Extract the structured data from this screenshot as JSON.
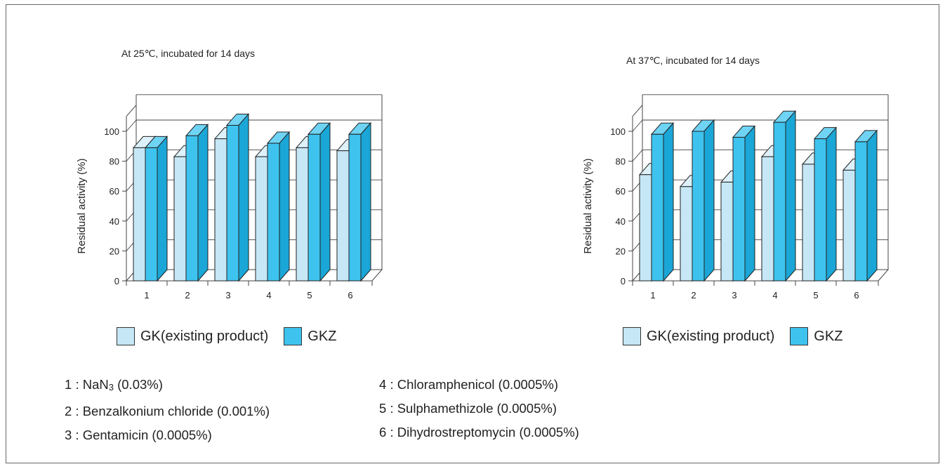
{
  "colors": {
    "gk_front": "#c6e7f6",
    "gk_side": "#a6d6ee",
    "gk_top": "#ddf1fa",
    "gkz_front": "#3ec3ef",
    "gkz_side": "#1aa6d6",
    "gkz_top": "#6fd3f4",
    "grid": "#444444"
  },
  "legend": [
    {
      "label": "GK(existing product)",
      "color": "#c6e7f6"
    },
    {
      "label": "GKZ",
      "color": "#3ec3ef"
    }
  ],
  "chart_data": [
    {
      "type": "bar",
      "title": "At 25℃, incubated for 14 days",
      "ylabel": "Residual activity (%)",
      "categories": [
        "1",
        "2",
        "3",
        "4",
        "5",
        "6"
      ],
      "yticks": [
        "0",
        "20",
        "40",
        "60",
        "80",
        "100"
      ],
      "ylim": [
        0,
        100
      ],
      "grid": true,
      "series": [
        {
          "name": "GK(existing product)",
          "values": [
            89,
            83,
            95,
            83,
            89,
            87
          ]
        },
        {
          "name": "GKZ",
          "values": [
            89,
            97,
            104,
            92,
            98,
            98
          ]
        }
      ]
    },
    {
      "type": "bar",
      "title": "At 37℃, incubated for 14 days",
      "ylabel": "Residual activity (%)",
      "categories": [
        "1",
        "2",
        "3",
        "4",
        "5",
        "6"
      ],
      "yticks": [
        "0",
        "20",
        "40",
        "60",
        "80",
        "100"
      ],
      "ylim": [
        0,
        100
      ],
      "grid": true,
      "series": [
        {
          "name": "GK(existing product)",
          "values": [
            71,
            63,
            66,
            83,
            78,
            74
          ]
        },
        {
          "name": "GKZ",
          "values": [
            98,
            100,
            96,
            106,
            95,
            93
          ]
        }
      ]
    }
  ],
  "notes": [
    {
      "num": "1",
      "sep": ":",
      "text": "NaN",
      "sub": "3",
      "after": " (0.03%)"
    },
    {
      "num": "2",
      "sep": ":",
      "text": "Benzalkonium chloride (0.001%)",
      "sub": "",
      "after": ""
    },
    {
      "num": "3",
      "sep": ":",
      "text": "Gentamicin (0.0005%)",
      "sub": "",
      "after": ""
    },
    {
      "num": "4",
      "sep": ":",
      "text": "Chloramphenicol (0.0005%)",
      "sub": "",
      "after": ""
    },
    {
      "num": "5",
      "sep": ":",
      "text": "Sulphamethizole (0.0005%)",
      "sub": "",
      "after": ""
    },
    {
      "num": "6",
      "sep": ":",
      "text": "Dihydrostreptomycin (0.0005%)",
      "sub": "",
      "after": ""
    }
  ]
}
